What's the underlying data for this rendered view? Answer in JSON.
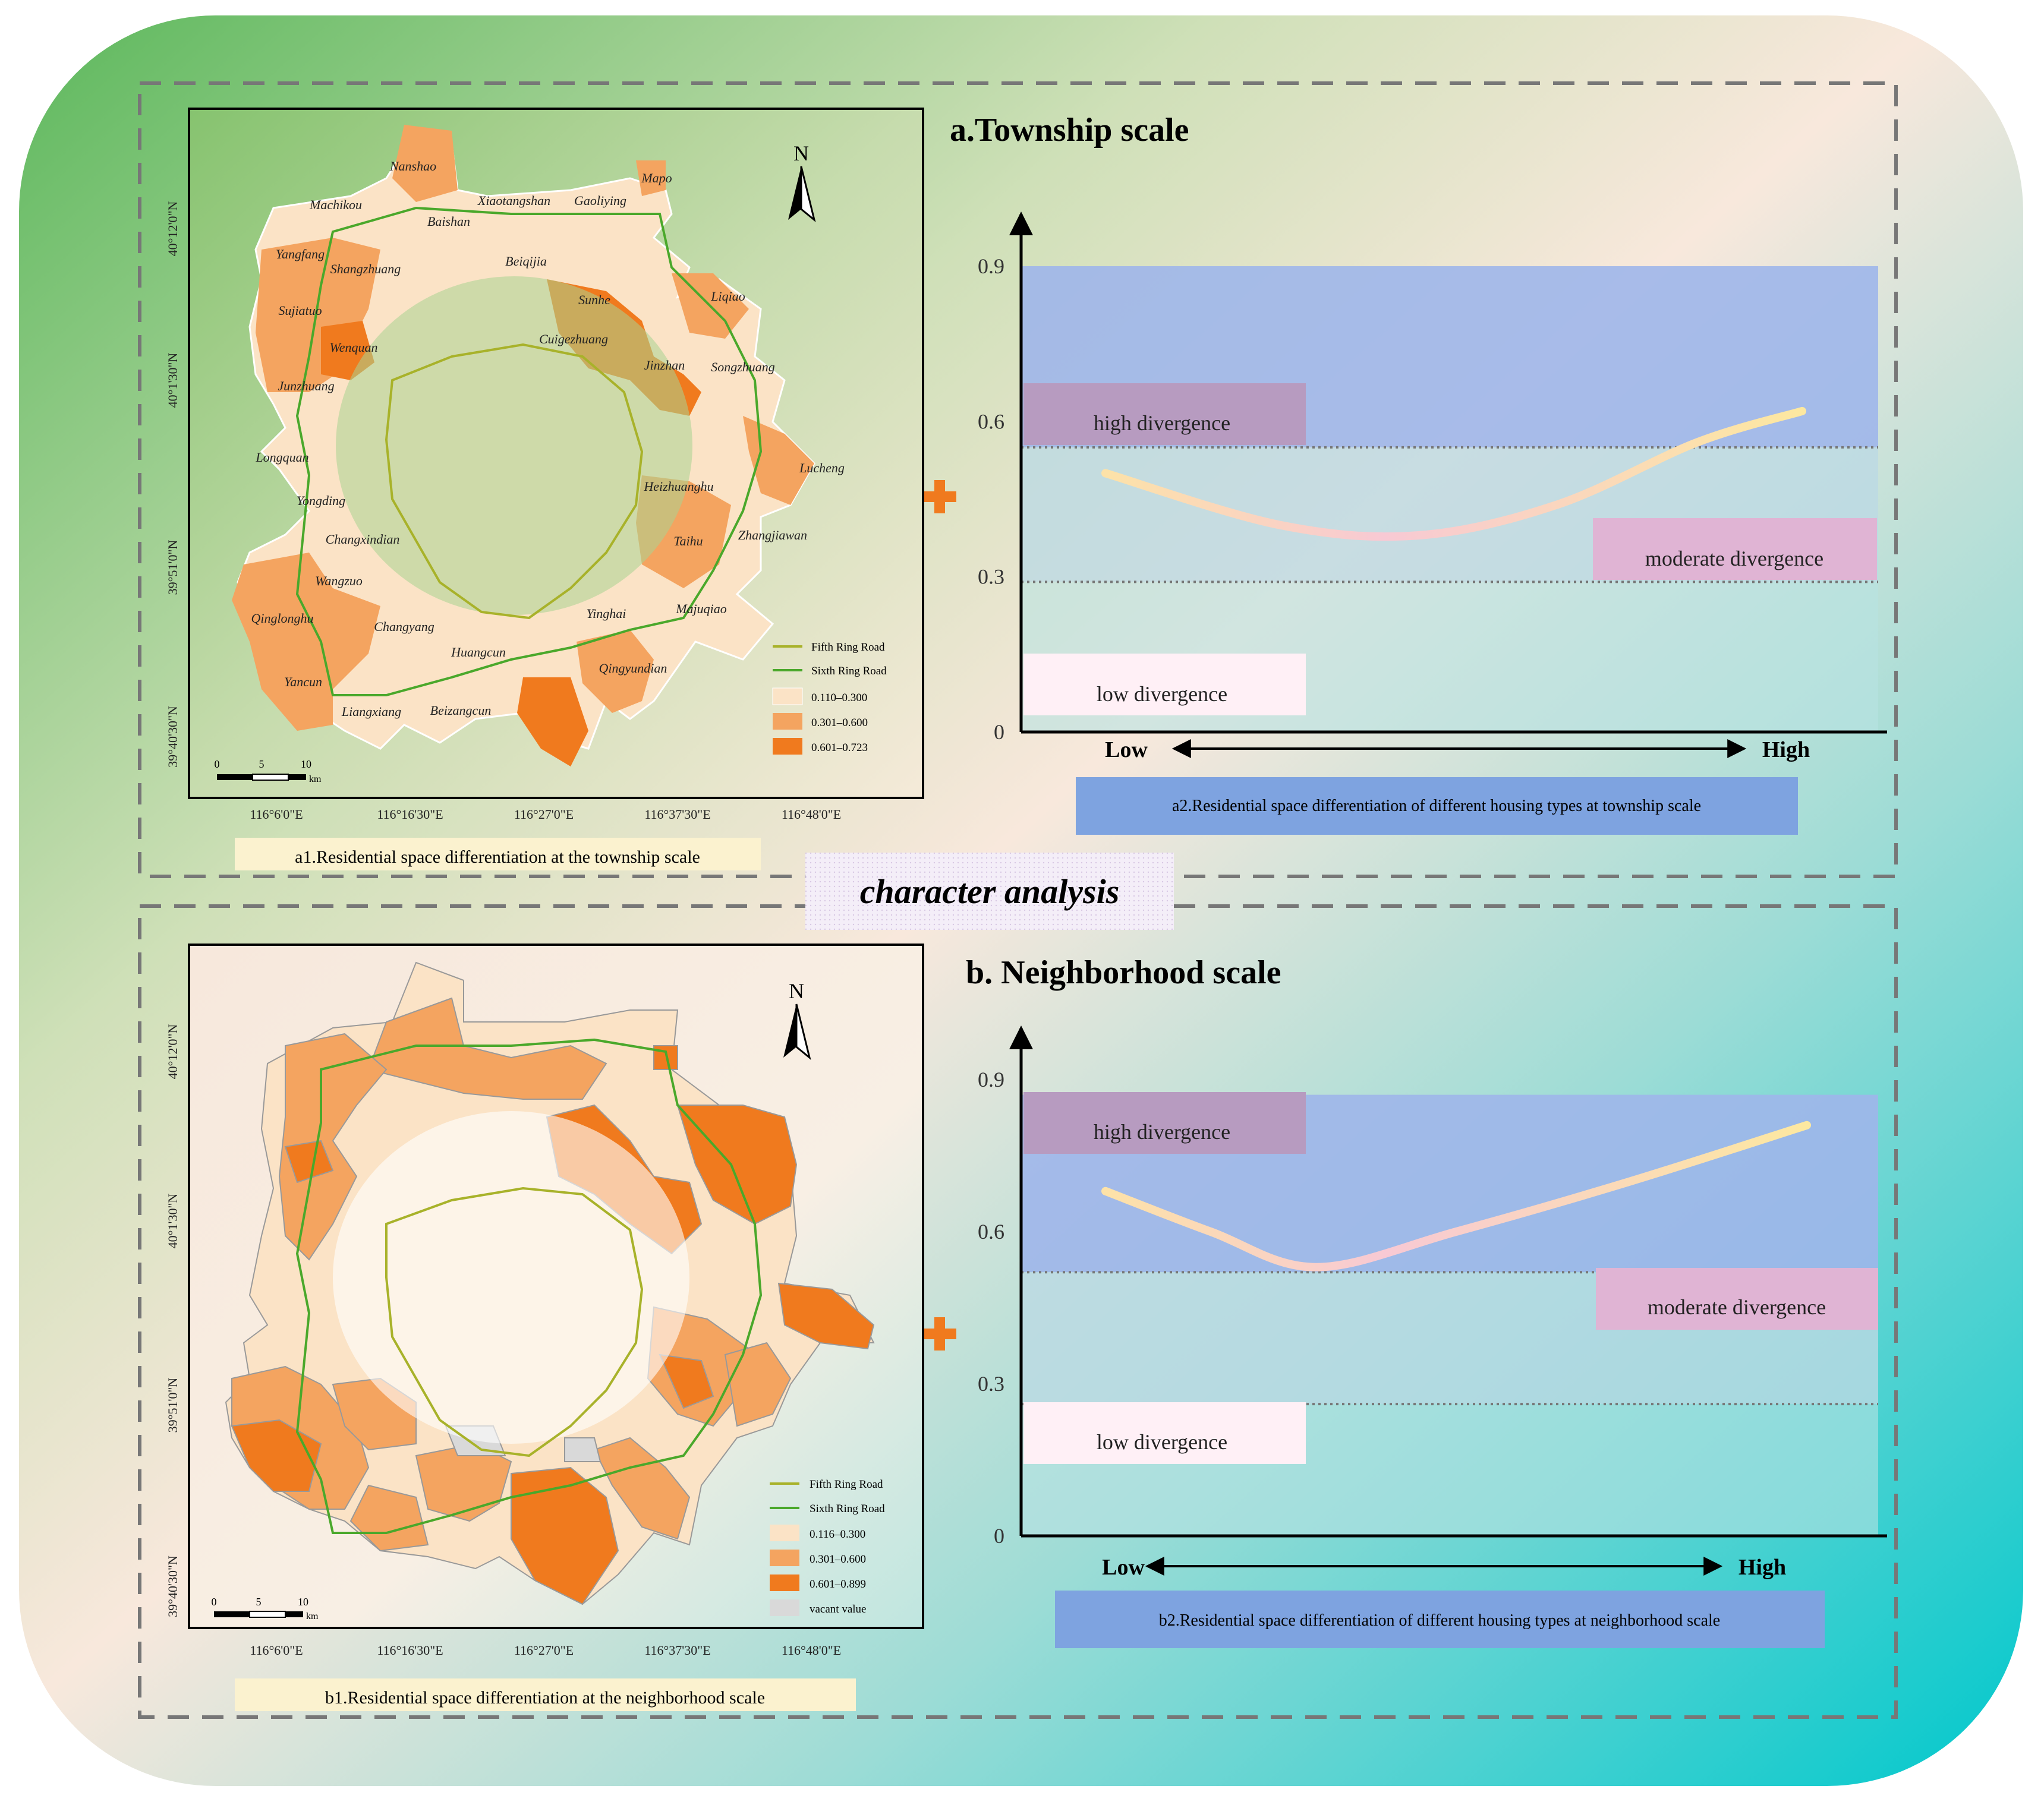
{
  "center_title": "character analysis",
  "ring_legend": {
    "fifth": "Fifth Ring Road",
    "sixth": "Sixth Ring Road"
  },
  "colors": {
    "low": "#fbe3c6",
    "mid": "#f4a460",
    "high": "#f07a1e",
    "vacant": "#d9d9d9",
    "fifth_ring": "#a8b22a",
    "sixth_ring": "#4aa82b"
  },
  "north_label": "N",
  "scale_bar": {
    "ticks": [
      "0",
      "5",
      "10"
    ],
    "unit": "km"
  },
  "lon_labels": [
    "116°6'0\"E",
    "116°16'30\"E",
    "116°27'0\"E",
    "116°37'30\"E",
    "116°48'0\"E"
  ],
  "lat_labels": [
    "40°12'0\"N",
    "40°1'30\"N",
    "39°51'0\"N",
    "39°40'30\"N"
  ],
  "panel_a": {
    "title": "a.Township scale",
    "map_caption": "a1.Residential space differentiation at the township scale",
    "legend_classes": [
      "0.110–0.300",
      "0.301–0.600",
      "0.601–0.723"
    ],
    "townships": [
      "Nanshao",
      "Mapo",
      "Machikou",
      "Xiaotangshan",
      "Gaoliying",
      "Baishan",
      "Yangfang",
      "Shangzhuang",
      "Beiqijia",
      "Sujiatuo",
      "Sunhe",
      "Liqiao",
      "Wenquan",
      "Cuigezhuang",
      "Jinzhan",
      "Songzhuang",
      "Junzhuang",
      "Longquan",
      "Lucheng",
      "Yongding",
      "Heizhuanghu",
      "Changxindian",
      "Taihu",
      "Zhangjiawan",
      "Wangzuo",
      "Qinglonghu",
      "Changyang",
      "Yinghai",
      "Majuqiao",
      "Huangcun",
      "Qingyundian",
      "Yancun",
      "Liangxiang",
      "Beizangcun"
    ],
    "chart_caption": "a2.Residential space differentiation of different housing types at township scale"
  },
  "panel_b": {
    "title": "b. Neighborhood scale",
    "map_caption": "b1.Residential space differentiation at the neighborhood scale",
    "legend_classes": [
      "0.116–0.300",
      "0.301–0.600",
      "0.601–0.899",
      "vacant value"
    ],
    "chart_caption": "b2.Residential space differentiation of different housing types at  neighborhood scale"
  },
  "chart_data": [
    {
      "type": "line",
      "y_ticks": [
        "0.9",
        "0.6",
        "0.3",
        "0"
      ],
      "ylim": [
        0,
        0.9
      ],
      "x_axis": {
        "low": "Low",
        "high": "High"
      },
      "bands": [
        {
          "label": "high divergence",
          "from": 0.55,
          "to": 0.9
        },
        {
          "label": "moderate divergence",
          "from": 0.29,
          "to": 0.55
        },
        {
          "label": "low divergence",
          "from": 0,
          "to": 0.29
        }
      ],
      "curve": [
        [
          0.0,
          0.5
        ],
        [
          0.25,
          0.4
        ],
        [
          0.45,
          0.38
        ],
        [
          0.65,
          0.44
        ],
        [
          0.85,
          0.56
        ],
        [
          1.0,
          0.62
        ]
      ]
    },
    {
      "type": "line",
      "y_ticks": [
        "0.9",
        "0.6",
        "0.3",
        "0"
      ],
      "ylim": [
        0,
        0.9
      ],
      "x_axis": {
        "low": "Low",
        "high": "High"
      },
      "bands": [
        {
          "label": "high divergence",
          "from": 0.52,
          "to": 0.87
        },
        {
          "label": "moderate divergence",
          "from": 0.26,
          "to": 0.52
        },
        {
          "label": "low divergence",
          "from": 0,
          "to": 0.26
        }
      ],
      "curve": [
        [
          0.0,
          0.68
        ],
        [
          0.15,
          0.6
        ],
        [
          0.3,
          0.53
        ],
        [
          0.5,
          0.6
        ],
        [
          0.75,
          0.7
        ],
        [
          1.0,
          0.81
        ]
      ]
    }
  ]
}
